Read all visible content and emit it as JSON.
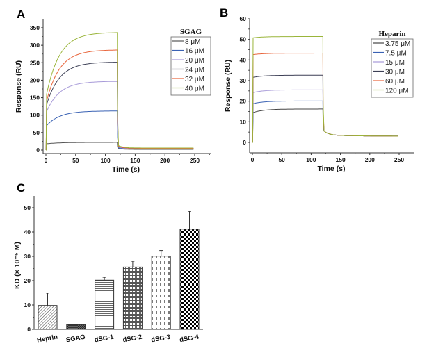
{
  "chart_data": [
    {
      "panel": "A",
      "type": "line",
      "title": "",
      "xlabel": "Time (s)",
      "ylabel": "Response (RU)",
      "xlim": [
        0,
        250
      ],
      "ylim": [
        0,
        350
      ],
      "xticks": [
        0,
        50,
        100,
        150,
        200,
        250
      ],
      "yticks": [
        0,
        50,
        100,
        150,
        200,
        250,
        300,
        350
      ],
      "legend_title": "SGAG",
      "legend_position": "top-right",
      "injection_end": 120,
      "series": [
        {
          "name": "8 μM",
          "color": "#555555",
          "start": 18,
          "plateau": 22,
          "tail": 2
        },
        {
          "name": "16 μM",
          "color": "#3a62b4",
          "start": 70,
          "plateau": 112,
          "tail": 3
        },
        {
          "name": "20 μM",
          "color": "#a79ad8",
          "start": 110,
          "plateau": 197,
          "tail": 4
        },
        {
          "name": "24 μM",
          "color": "#3c3f55",
          "start": 130,
          "plateau": 252,
          "tail": 5
        },
        {
          "name": "32 μM",
          "color": "#e8643a",
          "start": 140,
          "plateau": 287,
          "tail": 5
        },
        {
          "name": "40 μM",
          "color": "#9ab53a",
          "start": 160,
          "plateau": 337,
          "tail": 6
        }
      ]
    },
    {
      "panel": "B",
      "type": "line",
      "title": "",
      "xlabel": "Time (s)",
      "ylabel": "Response (RU)",
      "xlim": [
        0,
        250
      ],
      "ylim": [
        0,
        60
      ],
      "xticks": [
        0,
        50,
        100,
        150,
        200,
        250
      ],
      "yticks": [
        0,
        10,
        20,
        30,
        40,
        50,
        60
      ],
      "legend_title": "Heparin",
      "legend_position": "top-right",
      "injection_end": 120,
      "series": [
        {
          "name": "3.75 μM",
          "color": "#444444",
          "start": 14.5,
          "plateau": 16.2,
          "tail": 3
        },
        {
          "name": "7.5 μM",
          "color": "#3a62b4",
          "start": 18.8,
          "plateau": 20.1,
          "tail": 3
        },
        {
          "name": "15 μM",
          "color": "#a79ad8",
          "start": 24.2,
          "plateau": 25.5,
          "tail": 3
        },
        {
          "name": "30 μM",
          "color": "#3c3f55",
          "start": 31.6,
          "plateau": 32.6,
          "tail": 3
        },
        {
          "name": "60 μM",
          "color": "#e8643a",
          "start": 42.6,
          "plateau": 43.3,
          "tail": 3
        },
        {
          "name": "120 μM",
          "color": "#9ab53a",
          "start": 50.8,
          "plateau": 51.4,
          "tail": 3
        }
      ]
    },
    {
      "panel": "C",
      "type": "bar",
      "title": "",
      "xlabel": "",
      "ylabel": "KD (× 10⁻⁵ M)",
      "ylim": [
        0,
        55
      ],
      "yticks": [
        0,
        10,
        20,
        30,
        40,
        50
      ],
      "categories": [
        "Heprin",
        "SGAG",
        "dSG-1",
        "dSG-2",
        "dSG-3",
        "dSG-4"
      ],
      "values": [
        9.8,
        1.9,
        20.2,
        25.6,
        30.1,
        41.2
      ],
      "errors": [
        5.1,
        0.2,
        1.2,
        2.4,
        2.3,
        7.3
      ],
      "patterns": [
        "diagonal-hatch",
        "crosshatch-dark",
        "horizontal-lines",
        "fine-grid",
        "dashed-vertical",
        "checkerboard"
      ]
    }
  ],
  "labels": {
    "panel_a": "A",
    "panel_b": "B",
    "panel_c": "C"
  }
}
